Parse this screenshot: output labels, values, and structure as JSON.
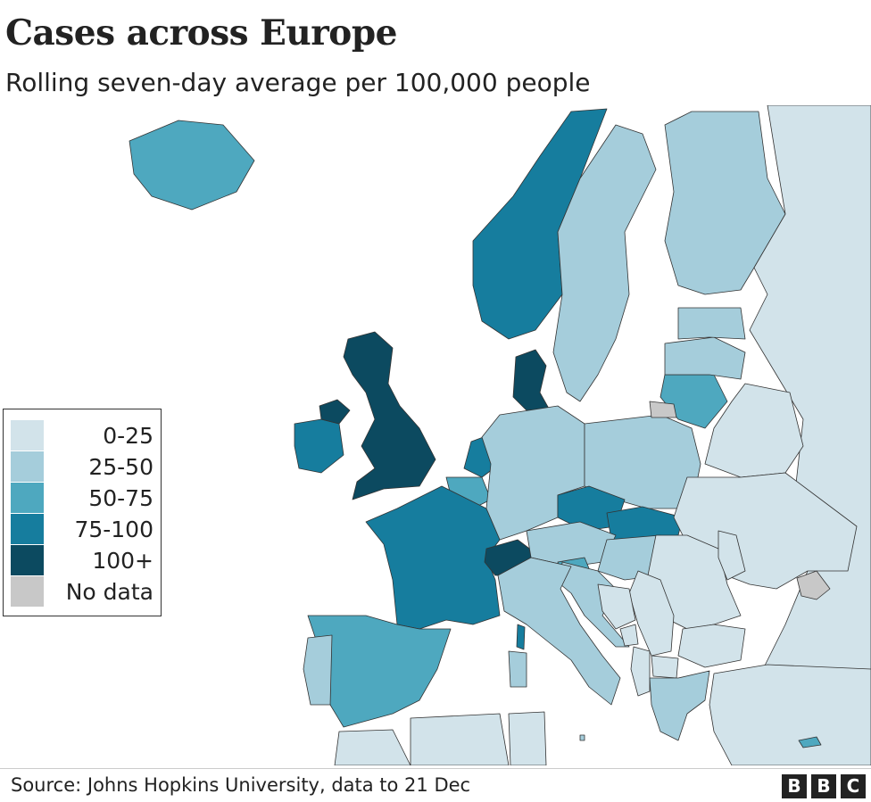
{
  "title": "Cases across Europe",
  "subtitle": "Rolling seven-day average per 100,000 people",
  "legend": {
    "items": [
      {
        "label": "0-25",
        "color": "#d2e3ea"
      },
      {
        "label": "25-50",
        "color": "#a5cddb"
      },
      {
        "label": "50-75",
        "color": "#4ea8bf"
      },
      {
        "label": "75-100",
        "color": "#167d9e"
      },
      {
        "label": "100+",
        "color": "#0c4a60"
      },
      {
        "label": "No data",
        "color": "#c8c8c8"
      }
    ]
  },
  "map_regions": [
    {
      "name": "Iceland",
      "band": "50-75"
    },
    {
      "name": "Ireland",
      "band": "75-100"
    },
    {
      "name": "Northern Ireland",
      "band": "100+"
    },
    {
      "name": "United Kingdom",
      "band": "100+"
    },
    {
      "name": "Norway",
      "band": "75-100"
    },
    {
      "name": "Sweden",
      "band": "25-50"
    },
    {
      "name": "Finland",
      "band": "25-50"
    },
    {
      "name": "Denmark",
      "band": "100+"
    },
    {
      "name": "Netherlands",
      "band": "75-100"
    },
    {
      "name": "Belgium",
      "band": "50-75"
    },
    {
      "name": "France",
      "band": "75-100"
    },
    {
      "name": "Switzerland",
      "band": "100+"
    },
    {
      "name": "Germany",
      "band": "25-50"
    },
    {
      "name": "Poland",
      "band": "25-50"
    },
    {
      "name": "Czechia",
      "band": "75-100"
    },
    {
      "name": "Slovakia",
      "band": "75-100"
    },
    {
      "name": "Austria",
      "band": "25-50"
    },
    {
      "name": "Hungary",
      "band": "25-50"
    },
    {
      "name": "Slovenia",
      "band": "50-75"
    },
    {
      "name": "Croatia",
      "band": "25-50"
    },
    {
      "name": "Italy",
      "band": "25-50"
    },
    {
      "name": "Corsica",
      "band": "75-100"
    },
    {
      "name": "Sardinia",
      "band": "25-50"
    },
    {
      "name": "Spain",
      "band": "50-75"
    },
    {
      "name": "Portugal",
      "band": "25-50"
    },
    {
      "name": "Lithuania",
      "band": "50-75"
    },
    {
      "name": "Latvia",
      "band": "25-50"
    },
    {
      "name": "Estonia",
      "band": "25-50"
    },
    {
      "name": "Kaliningrad",
      "band": "No data"
    },
    {
      "name": "Russia",
      "band": "0-25"
    },
    {
      "name": "Belarus",
      "band": "0-25"
    },
    {
      "name": "Ukraine",
      "band": "0-25"
    },
    {
      "name": "Crimea",
      "band": "No data"
    },
    {
      "name": "Romania",
      "band": "0-25"
    },
    {
      "name": "Moldova",
      "band": "0-25"
    },
    {
      "name": "Serbia",
      "band": "0-25"
    },
    {
      "name": "Bosnia and Herzegovina",
      "band": "0-25"
    },
    {
      "name": "Bulgaria",
      "band": "0-25"
    },
    {
      "name": "North Macedonia",
      "band": "0-25"
    },
    {
      "name": "Albania",
      "band": "0-25"
    },
    {
      "name": "Montenegro",
      "band": "0-25"
    },
    {
      "name": "Greece",
      "band": "25-50"
    },
    {
      "name": "Turkey",
      "band": "0-25"
    },
    {
      "name": "Cyprus",
      "band": "50-75"
    },
    {
      "name": "Morocco",
      "band": "0-25"
    },
    {
      "name": "Algeria",
      "band": "0-25"
    },
    {
      "name": "Tunisia",
      "band": "0-25"
    },
    {
      "name": "Malta",
      "band": "25-50"
    }
  ],
  "source": "Source: Johns Hopkins University, data to 21 Dec",
  "logo": [
    "B",
    "B",
    "C"
  ]
}
